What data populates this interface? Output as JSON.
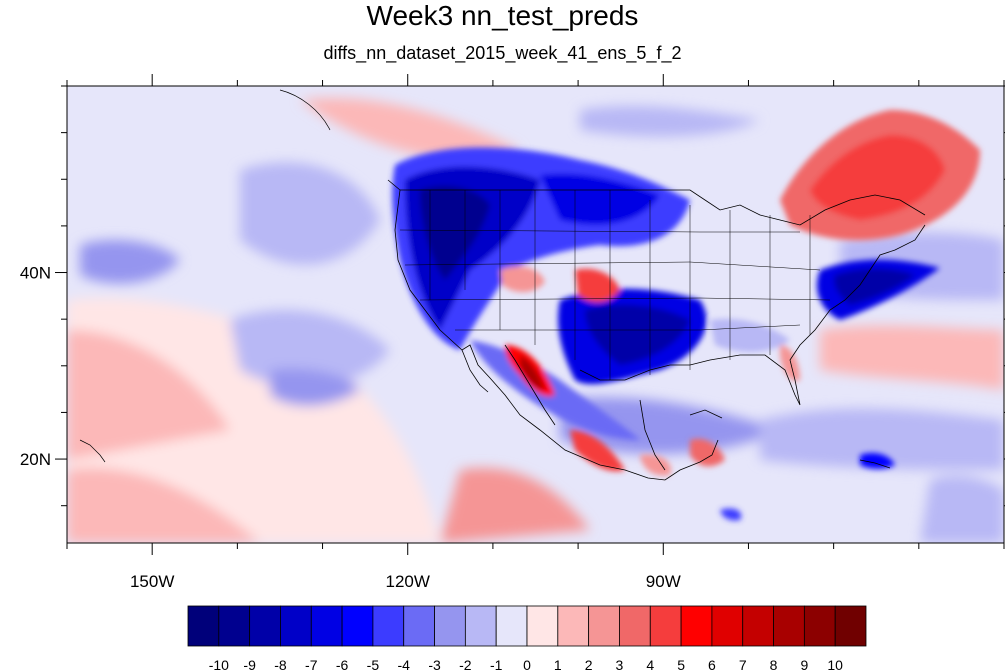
{
  "title": "Week3 nn_test_preds",
  "subtitle": "diffs_nn_dataset_2015_week_41_ens_5_f_2",
  "map": {
    "lon_range": [
      -160,
      -50
    ],
    "lat_range": [
      11,
      60
    ],
    "lon_labels": [
      {
        "lon": -150,
        "text": "150W"
      },
      {
        "lon": -120,
        "text": "120W"
      },
      {
        "lon": -90,
        "text": "90W"
      }
    ],
    "lat_labels": [
      {
        "lat": 40,
        "text": "40N"
      },
      {
        "lat": 20,
        "text": "20N"
      }
    ]
  },
  "colorbar": {
    "labels": [
      "-10",
      "-9",
      "-8",
      "-7",
      "-6",
      "-5",
      "-4",
      "-3",
      "-2",
      "-1",
      "0",
      "1",
      "2",
      "3",
      "4",
      "5",
      "6",
      "7",
      "8",
      "9",
      "10"
    ],
    "colors": [
      "#00007a",
      "#00008f",
      "#0000a8",
      "#0000c8",
      "#0000e4",
      "#0000ff",
      "#3c3cff",
      "#6b6bf5",
      "#9595ef",
      "#b8b8f5",
      "#e6e6fa",
      "#ffe6e6",
      "#fcb8b8",
      "#f59595",
      "#f06868",
      "#f53d3d",
      "#ff0000",
      "#e00000",
      "#c40000",
      "#a80000",
      "#8c0000",
      "#700000"
    ]
  }
}
